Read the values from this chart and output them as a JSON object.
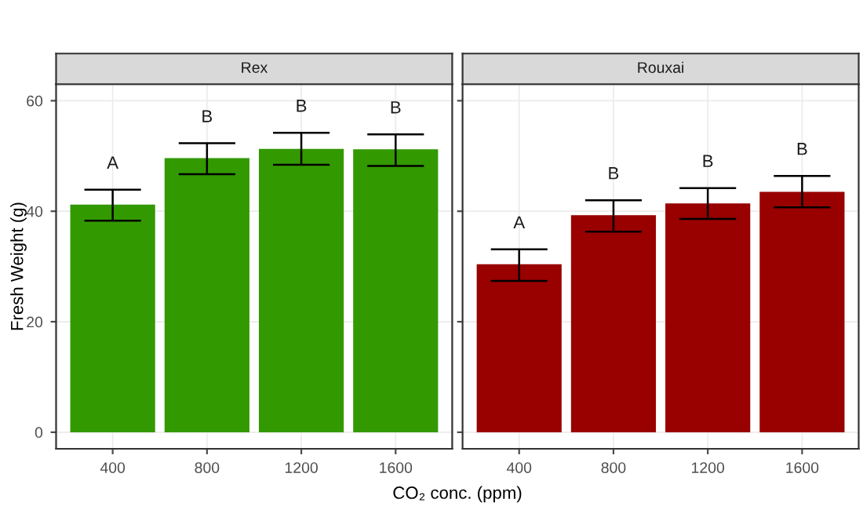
{
  "chart_data": [
    {
      "type": "bar",
      "title": "Rex",
      "xlabel": "CO₂ conc. (ppm)",
      "ylabel": "Fresh Weight (g)",
      "categories": [
        "400",
        "800",
        "1200",
        "1600"
      ],
      "values": [
        41.2,
        49.6,
        51.3,
        51.2
      ],
      "color": "#339900",
      "errors": [
        [
          38.3,
          43.9
        ],
        [
          46.7,
          52.3
        ],
        [
          48.4,
          54.2
        ],
        [
          48.2,
          53.9
        ]
      ],
      "ylim": [
        -3,
        63
      ],
      "yticks": [
        0,
        20,
        40,
        60
      ],
      "grid": true,
      "annotations": [
        {
          "text": "A",
          "x": "400",
          "y": 43.9
        },
        {
          "text": "B",
          "x": "800",
          "y": 52.3
        },
        {
          "text": "B",
          "x": "1200",
          "y": 54.2
        },
        {
          "text": "B",
          "x": "1600",
          "y": 53.9
        }
      ]
    },
    {
      "type": "bar",
      "title": "Rouxai",
      "categories": [
        "400",
        "800",
        "1200",
        "1600"
      ],
      "values": [
        30.4,
        39.3,
        41.4,
        43.5
      ],
      "color": "#990000",
      "errors": [
        [
          27.4,
          33.1
        ],
        [
          36.3,
          42.0
        ],
        [
          38.6,
          44.2
        ],
        [
          40.7,
          46.4
        ]
      ],
      "ylim": [
        -3,
        63
      ],
      "yticks": [
        0,
        20,
        40,
        60
      ],
      "grid": true,
      "tick_labels": "x",
      "annotations": [
        {
          "text": "A",
          "x": "400",
          "y": 33.1
        },
        {
          "text": "B",
          "x": "800",
          "y": 42.0
        },
        {
          "text": "B",
          "x": "1200",
          "y": 44.2
        },
        {
          "text": "B",
          "x": "1600",
          "y": 46.4
        }
      ]
    }
  ]
}
